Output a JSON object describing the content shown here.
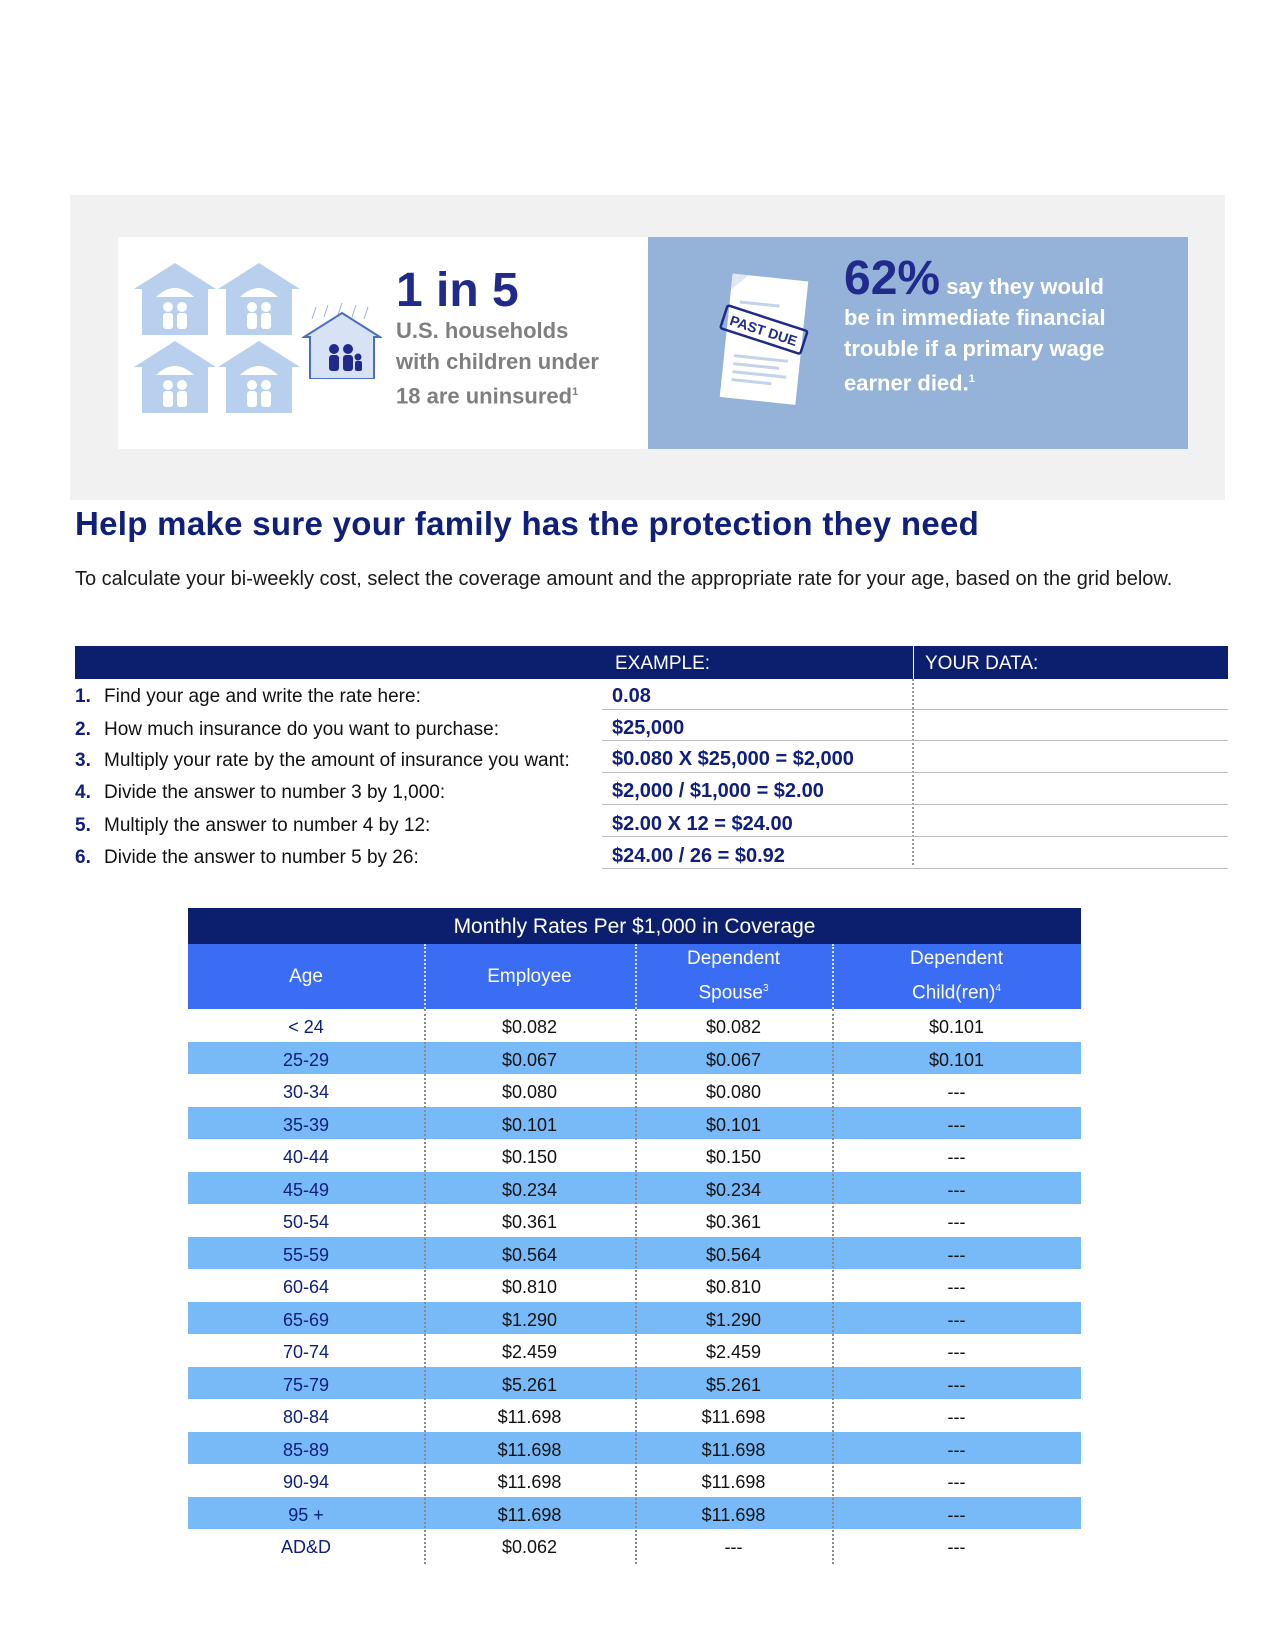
{
  "stats": {
    "left_big": "1 in 5",
    "left_lines": [
      "U.S. households",
      "with children under",
      "18 are uninsured"
    ],
    "left_sup": "1",
    "right_big": "62%",
    "right_lines": [
      "say they would",
      "be in immediate financial",
      "trouble if a primary wage",
      "earner died."
    ],
    "right_sup": "1",
    "stamp": "PAST DUE"
  },
  "heading": "Help make sure your family has the protection they need",
  "intro": "To calculate your bi-weekly cost, select the coverage amount and the appropriate rate for your age, based on the grid below.",
  "calc": {
    "example_label": "EXAMPLE:",
    "your_data_label": "YOUR DATA:",
    "steps": [
      {
        "num": "1.",
        "text": "Find your age and write the rate here:",
        "example": "0.08"
      },
      {
        "num": "2.",
        "text": "How much insurance do you want to purchase:",
        "example": "$25,000"
      },
      {
        "num": "3.",
        "text": "Multiply your rate by the amount of insurance you want:",
        "example": "$0.080 X $25,000 = $2,000"
      },
      {
        "num": "4.",
        "text": "Divide the answer to number 3 by 1,000:",
        "example": "$2,000 / $1,000 = $2.00"
      },
      {
        "num": "5.",
        "text": "Multiply the answer to number 4 by 12:",
        "example": "$2.00 X 12 = $24.00"
      },
      {
        "num": "6.",
        "text": "Divide the answer to number 5 by 26:",
        "example": "$24.00 / 26 = $0.92"
      }
    ]
  },
  "rates": {
    "title": "Monthly Rates Per $1,000 in Coverage",
    "headers": {
      "age": "Age",
      "employee": "Employee",
      "spouse_l1": "Dependent",
      "spouse_l2": "Spouse",
      "spouse_sup": "3",
      "child_l1": "Dependent",
      "child_l2": "Child(ren)",
      "child_sup": "4"
    },
    "rows": [
      [
        "< 24",
        "$0.082",
        "$0.082",
        "$0.101"
      ],
      [
        "25-29",
        "$0.067",
        "$0.067",
        "$0.101"
      ],
      [
        "30-34",
        "$0.080",
        "$0.080",
        "---"
      ],
      [
        "35-39",
        "$0.101",
        "$0.101",
        "---"
      ],
      [
        "40-44",
        "$0.150",
        "$0.150",
        "---"
      ],
      [
        "45-49",
        "$0.234",
        "$0.234",
        "---"
      ],
      [
        "50-54",
        "$0.361",
        "$0.361",
        "---"
      ],
      [
        "55-59",
        "$0.564",
        "$0.564",
        "---"
      ],
      [
        "60-64",
        "$0.810",
        "$0.810",
        "---"
      ],
      [
        "65-69",
        "$1.290",
        "$1.290",
        "---"
      ],
      [
        "70-74",
        "$2.459",
        "$2.459",
        "---"
      ],
      [
        "75-79",
        "$5.261",
        "$5.261",
        "---"
      ],
      [
        "80-84",
        "$11.698",
        "$11.698",
        "---"
      ],
      [
        "85-89",
        "$11.698",
        "$11.698",
        "---"
      ],
      [
        "90-94",
        "$11.698",
        "$11.698",
        "---"
      ],
      [
        "95 +",
        "$11.698",
        "$11.698",
        "---"
      ],
      [
        "AD&D",
        "$0.062",
        "---",
        "---"
      ]
    ]
  }
}
